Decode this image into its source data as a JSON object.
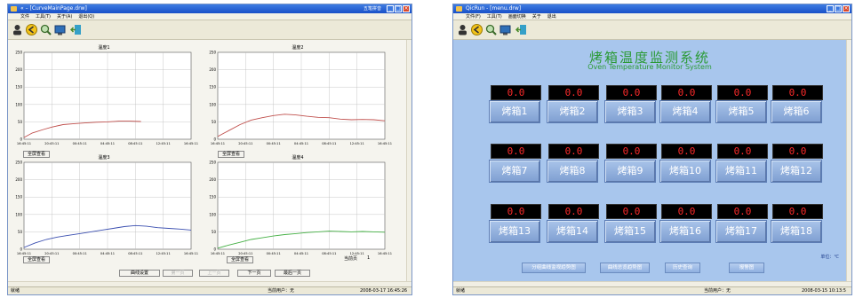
{
  "left_window": {
    "title": "« – [CurveMainPage.drw]",
    "title_extra": "五笔拼音",
    "menu": [
      "文件",
      "工具(T)",
      "关于(A)",
      "退出(Q)"
    ],
    "charts": [
      {
        "title": "温度1",
        "ylabels": [
          "250",
          "200",
          "150",
          "100",
          "50",
          "0"
        ],
        "xlabels": [
          "16:45:11",
          "20:45:11",
          "00:45:11",
          "04:45:11",
          "08:45:11",
          "12:45:11",
          "16:45:11"
        ],
        "button": "全屏查看"
      },
      {
        "title": "温度2",
        "ylabels": [
          "250",
          "200",
          "150",
          "100",
          "50",
          "0"
        ],
        "xlabels": [
          "16:45:11",
          "20:45:11",
          "00:45:11",
          "04:45:11",
          "08:45:11",
          "12:45:11",
          "16:45:11"
        ],
        "button": "全屏查看"
      },
      {
        "title": "温度3",
        "ylabels": [
          "250",
          "200",
          "150",
          "100",
          "50",
          "0"
        ],
        "xlabels": [
          "16:45:11",
          "20:45:11",
          "00:45:11",
          "04:45:11",
          "08:45:11",
          "12:45:11",
          "16:45:11"
        ],
        "button": "全屏查看"
      },
      {
        "title": "温度4",
        "ylabels": [
          "250",
          "200",
          "150",
          "100",
          "50",
          "0"
        ],
        "xlabels": [
          "16:45:11",
          "20:45:11",
          "00:45:11",
          "04:45:11",
          "08:45:11",
          "12:45:11",
          "16:45:11"
        ],
        "button": "全屏查看"
      }
    ],
    "nav": {
      "settings": "曲线设置",
      "first": "第一页",
      "prev": "上一页",
      "next": "下一页",
      "last": "最后一页",
      "page_label": "当前页",
      "page_value": "1"
    },
    "status": {
      "ready": "就绪",
      "user": "当前用户：无",
      "time": "2008-03-17  16:45:26"
    }
  },
  "right_window": {
    "title": "QicRun - [menu.drw]",
    "menu": [
      "文件(F)",
      "工具(T)",
      "画面切换",
      "关于",
      "退出"
    ],
    "heading_cn": "烤箱温度监测系统",
    "heading_en": "Oven Temperature Monitor System",
    "ovens": [
      {
        "label": "烤箱1",
        "value": "0.0"
      },
      {
        "label": "烤箱2",
        "value": "0.0"
      },
      {
        "label": "烤箱3",
        "value": "0.0"
      },
      {
        "label": "烤箱4",
        "value": "0.0"
      },
      {
        "label": "烤箱5",
        "value": "0.0"
      },
      {
        "label": "烤箱6",
        "value": "0.0"
      },
      {
        "label": "烤箱7",
        "value": "0.0"
      },
      {
        "label": "烤箱8",
        "value": "0.0"
      },
      {
        "label": "烤箱9",
        "value": "0.0"
      },
      {
        "label": "烤箱10",
        "value": "0.0"
      },
      {
        "label": "烤箱11",
        "value": "0.0"
      },
      {
        "label": "烤箱12",
        "value": "0.0"
      },
      {
        "label": "烤箱13",
        "value": "0.0"
      },
      {
        "label": "烤箱14",
        "value": "0.0"
      },
      {
        "label": "烤箱15",
        "value": "0.0"
      },
      {
        "label": "烤箱16",
        "value": "0.0"
      },
      {
        "label": "烤箱17",
        "value": "0.0"
      },
      {
        "label": "烤箱18",
        "value": "0.0"
      }
    ],
    "unit": "单位：℃",
    "nav_buttons": [
      "分组曲线监视趋势图",
      "曲线总览趋势图",
      "历史查询",
      "报警图"
    ],
    "status": {
      "ready": "就绪",
      "user": "当前用户：无",
      "time": "2008-03-15  10:13:5"
    }
  },
  "chart_data": [
    {
      "type": "line",
      "title": "温度1",
      "x": [
        "16:45:11",
        "20:45:11",
        "00:45:11",
        "04:45:11",
        "08:45:11",
        "12:45:11",
        "16:45:11"
      ],
      "ylim": [
        0,
        250
      ],
      "grid": true,
      "series": [
        {
          "color": "#c0504d",
          "points": [
            [
              0,
              5
            ],
            [
              0.3,
              18
            ],
            [
              0.7,
              28
            ],
            [
              1.0,
              35
            ],
            [
              1.4,
              42
            ],
            [
              1.8,
              45
            ],
            [
              2.2,
              47
            ],
            [
              2.6,
              49
            ],
            [
              3.0,
              50
            ],
            [
              3.4,
              52
            ],
            [
              3.8,
              52
            ],
            [
              4.2,
              51
            ]
          ]
        }
      ]
    },
    {
      "type": "line",
      "title": "温度2",
      "x": [
        "16:45:11",
        "20:45:11",
        "00:45:11",
        "04:45:11",
        "08:45:11",
        "12:45:11",
        "16:45:11"
      ],
      "ylim": [
        0,
        250
      ],
      "grid": true,
      "series": [
        {
          "color": "#c0504d",
          "points": [
            [
              0,
              8
            ],
            [
              0.4,
              25
            ],
            [
              0.8,
              42
            ],
            [
              1.2,
              55
            ],
            [
              1.6,
              62
            ],
            [
              2.0,
              68
            ],
            [
              2.4,
              72
            ],
            [
              2.8,
              70
            ],
            [
              3.2,
              66
            ],
            [
              3.6,
              63
            ],
            [
              4.0,
              62
            ],
            [
              4.4,
              58
            ],
            [
              4.8,
              56
            ],
            [
              5.2,
              57
            ],
            [
              5.6,
              56
            ],
            [
              6.0,
              53
            ]
          ]
        }
      ]
    },
    {
      "type": "line",
      "title": "温度3",
      "x": [
        "16:45:11",
        "20:45:11",
        "00:45:11",
        "04:45:11",
        "08:45:11",
        "12:45:11",
        "16:45:11"
      ],
      "ylim": [
        0,
        250
      ],
      "grid": true,
      "series": [
        {
          "color": "#3b4fb0",
          "points": [
            [
              0,
              5
            ],
            [
              0.4,
              18
            ],
            [
              0.8,
              28
            ],
            [
              1.2,
              35
            ],
            [
              1.6,
              40
            ],
            [
              2.0,
              45
            ],
            [
              2.4,
              50
            ],
            [
              2.8,
              55
            ],
            [
              3.2,
              60
            ],
            [
              3.6,
              65
            ],
            [
              4.0,
              68
            ],
            [
              4.4,
              66
            ],
            [
              4.8,
              62
            ],
            [
              5.2,
              60
            ],
            [
              5.6,
              58
            ],
            [
              6.0,
              55
            ]
          ]
        }
      ]
    },
    {
      "type": "line",
      "title": "温度4",
      "x": [
        "16:45:11",
        "20:45:11",
        "00:45:11",
        "04:45:11",
        "08:45:11",
        "12:45:11",
        "16:45:11"
      ],
      "ylim": [
        0,
        250
      ],
      "grid": true,
      "series": [
        {
          "color": "#45b045",
          "points": [
            [
              0,
              3
            ],
            [
              0.4,
              12
            ],
            [
              0.8,
              20
            ],
            [
              1.2,
              28
            ],
            [
              1.6,
              33
            ],
            [
              2.0,
              38
            ],
            [
              2.4,
              42
            ],
            [
              2.8,
              45
            ],
            [
              3.2,
              48
            ],
            [
              3.6,
              50
            ],
            [
              4.0,
              52
            ],
            [
              4.4,
              51
            ],
            [
              4.8,
              50
            ],
            [
              5.2,
              51
            ],
            [
              5.6,
              50
            ],
            [
              6.0,
              49
            ]
          ]
        }
      ]
    }
  ]
}
